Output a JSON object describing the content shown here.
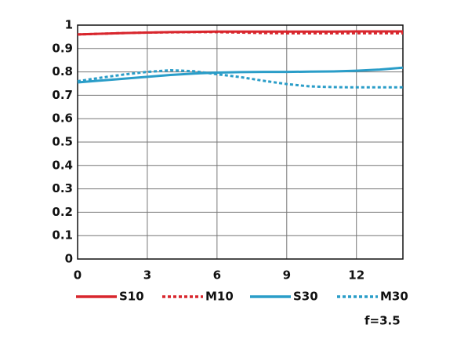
{
  "chart_data": {
    "type": "line",
    "x": [
      0,
      1,
      2,
      3,
      4,
      5,
      6,
      7,
      8,
      9,
      10,
      11,
      12,
      13,
      14
    ],
    "series": [
      {
        "name": "S10",
        "color": "#d8262d",
        "dashed": false,
        "values": [
          0.96,
          0.963,
          0.966,
          0.968,
          0.97,
          0.971,
          0.972,
          0.972,
          0.972,
          0.972,
          0.972,
          0.972,
          0.973,
          0.973,
          0.973
        ]
      },
      {
        "name": "M10",
        "color": "#d8262d",
        "dashed": true,
        "values": [
          0.96,
          0.963,
          0.966,
          0.968,
          0.969,
          0.97,
          0.97,
          0.968,
          0.966,
          0.965,
          0.965,
          0.965,
          0.965,
          0.965,
          0.965
        ]
      },
      {
        "name": "S30",
        "color": "#2a9dc8",
        "dashed": false,
        "values": [
          0.755,
          0.763,
          0.771,
          0.779,
          0.787,
          0.793,
          0.797,
          0.799,
          0.8,
          0.8,
          0.801,
          0.802,
          0.805,
          0.81,
          0.818
        ]
      },
      {
        "name": "M30",
        "color": "#2a9dc8",
        "dashed": true,
        "values": [
          0.76,
          0.775,
          0.789,
          0.8,
          0.807,
          0.803,
          0.79,
          0.778,
          0.762,
          0.748,
          0.738,
          0.735,
          0.734,
          0.734,
          0.734
        ]
      }
    ],
    "xlim": [
      0,
      14
    ],
    "xticks": [
      0,
      3,
      6,
      9,
      12
    ],
    "ylim": [
      0,
      1
    ],
    "yticks": [
      0,
      0.1,
      0.2,
      0.3,
      0.4,
      0.5,
      0.6,
      0.7,
      0.8,
      0.9,
      1
    ],
    "grid": true,
    "annotation": "f=3.5"
  }
}
